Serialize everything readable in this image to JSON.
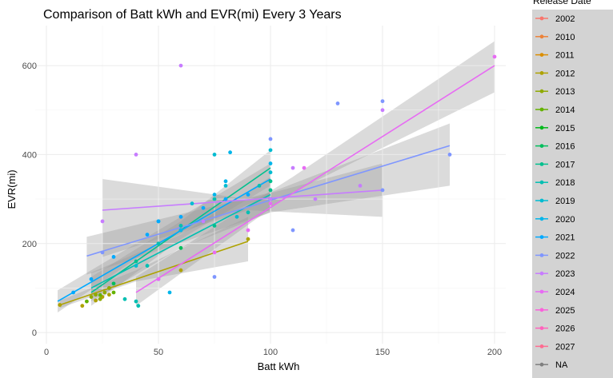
{
  "chart_data": {
    "type": "scatter",
    "title": "Comparison of Batt kWh and EVR(mi) Every 3 Years",
    "xlabel": "Batt kWh",
    "ylabel": "EVR(mi)",
    "xlim": [
      -5,
      205
    ],
    "ylim": [
      -25,
      690
    ],
    "x_ticks": [
      0,
      50,
      100,
      150,
      200
    ],
    "y_ticks": [
      0,
      200,
      400,
      600
    ],
    "grid": true,
    "legend_title": "Release Date",
    "legend_position": "right",
    "series": [
      {
        "name": "2002",
        "color": "#F8766D",
        "points": [],
        "fit": null
      },
      {
        "name": "2010",
        "color": "#EC8239",
        "points": [],
        "fit": null
      },
      {
        "name": "2011",
        "color": "#DB8E00",
        "points": [],
        "fit": null
      },
      {
        "name": "2012",
        "color": "#AEA200",
        "points": [
          [
            6,
            62
          ],
          [
            16,
            60
          ],
          [
            22,
            72
          ],
          [
            25,
            80
          ],
          [
            28,
            85
          ],
          [
            60,
            140
          ],
          [
            90,
            210
          ]
        ],
        "fit": {
          "x": [
            6,
            90
          ],
          "y": [
            62,
            205
          ],
          "band": [
            [
              6,
              55,
              72
            ],
            [
              40,
              115,
              140
            ],
            [
              90,
              160,
              260
            ]
          ]
        }
      },
      {
        "name": "2013",
        "color": "#8FAA00",
        "points": [
          [
            20,
            80
          ],
          [
            22,
            85
          ],
          [
            24,
            75
          ],
          [
            26,
            90
          ],
          [
            28,
            100
          ]
        ],
        "fit": null
      },
      {
        "name": "2014",
        "color": "#64B200",
        "points": [
          [
            18,
            70
          ],
          [
            24,
            84
          ],
          [
            30,
            90
          ]
        ],
        "fit": null
      },
      {
        "name": "2015",
        "color": "#00B81B",
        "points": [],
        "fit": null
      },
      {
        "name": "2016",
        "color": "#00BD5C",
        "points": [
          [
            30,
            110
          ],
          [
            60,
            190
          ]
        ],
        "fit": null
      },
      {
        "name": "2017",
        "color": "#00C08E",
        "points": [
          [
            40,
            160
          ],
          [
            60,
            230
          ],
          [
            75,
            240
          ],
          [
            100,
            340
          ],
          [
            100,
            320
          ]
        ],
        "fit": {
          "x": [
            20,
            100
          ],
          "y": [
            90,
            370
          ],
          "band": [
            [
              20,
              60,
              125
            ],
            [
              60,
              210,
              250
            ],
            [
              100,
              330,
              410
            ]
          ]
        }
      },
      {
        "name": "2018",
        "color": "#00BFB2",
        "points": [
          [
            35,
            75
          ],
          [
            40,
            70
          ],
          [
            41,
            60
          ],
          [
            45,
            150
          ],
          [
            50,
            200
          ],
          [
            60,
            240
          ],
          [
            75,
            300
          ],
          [
            90,
            270
          ],
          [
            95,
            330
          ],
          [
            100,
            300
          ]
        ],
        "fit": {
          "x": [
            20,
            100
          ],
          "y": [
            100,
            310
          ],
          "band": [
            [
              20,
              70,
              135
            ],
            [
              60,
              190,
              220
            ],
            [
              100,
              270,
              350
            ]
          ]
        }
      },
      {
        "name": "2019",
        "color": "#00BCD1",
        "points": [
          [
            40,
            150
          ],
          [
            50,
            250
          ],
          [
            65,
            290
          ],
          [
            75,
            400
          ],
          [
            80,
            330
          ],
          [
            85,
            260
          ],
          [
            100,
            360
          ],
          [
            100,
            410
          ]
        ],
        "fit": null
      },
      {
        "name": "2020",
        "color": "#00B5EA",
        "points": [
          [
            55,
            90
          ],
          [
            60,
            230
          ],
          [
            70,
            250
          ],
          [
            75,
            310
          ],
          [
            80,
            340
          ],
          [
            82,
            405
          ],
          [
            100,
            300
          ],
          [
            100,
            380
          ]
        ],
        "fit": null
      },
      {
        "name": "2021",
        "color": "#00A9FF",
        "points": [
          [
            12,
            90
          ],
          [
            20,
            120
          ],
          [
            30,
            170
          ],
          [
            45,
            220
          ],
          [
            50,
            250
          ],
          [
            60,
            260
          ],
          [
            70,
            280
          ],
          [
            80,
            300
          ],
          [
            90,
            310
          ]
        ],
        "fit": {
          "x": [
            5,
            100
          ],
          "y": [
            70,
            345
          ],
          "band": [
            [
              5,
              45,
              95
            ],
            [
              50,
              200,
              230
            ],
            [
              100,
              310,
              380
            ]
          ]
        }
      },
      {
        "name": "2022",
        "color": "#7F96FF",
        "points": [
          [
            25,
            180
          ],
          [
            50,
            120
          ],
          [
            75,
            125
          ],
          [
            100,
            435
          ],
          [
            110,
            230
          ],
          [
            130,
            515
          ],
          [
            150,
            320
          ],
          [
            150,
            520
          ],
          [
            180,
            400
          ]
        ],
        "fit": {
          "x": [
            18,
            180
          ],
          "y": [
            172,
            420
          ],
          "band": [
            [
              18,
              130,
              215
            ],
            [
              100,
              270,
              315
            ],
            [
              180,
              330,
              470
            ]
          ]
        }
      },
      {
        "name": "2023",
        "color": "#C77CFF",
        "points": [
          [
            25,
            250
          ],
          [
            40,
            400
          ],
          [
            60,
            600
          ],
          [
            70,
            250
          ],
          [
            100,
            300
          ],
          [
            110,
            370
          ],
          [
            120,
            300
          ],
          [
            140,
            330
          ],
          [
            150,
            500
          ]
        ],
        "fit": {
          "x": [
            25,
            150
          ],
          "y": [
            275,
            320
          ],
          "band": [
            [
              25,
              170,
              345
            ],
            [
              90,
              275,
              300
            ],
            [
              150,
              260,
              380
            ]
          ]
        }
      },
      {
        "name": "2024",
        "color": "#E76BF3",
        "points": [
          [
            50,
            120
          ],
          [
            75,
            180
          ],
          [
            90,
            230
          ],
          [
            100,
            290
          ],
          [
            115,
            370
          ],
          [
            200,
            620
          ]
        ],
        "fit": {
          "x": [
            40,
            200
          ],
          "y": [
            90,
            600
          ],
          "band": [
            [
              40,
              60,
              125
            ],
            [
              110,
              315,
              350
            ],
            [
              200,
              540,
              655
            ]
          ]
        }
      },
      {
        "name": "2025",
        "color": "#FA62DB",
        "points": [],
        "fit": null
      },
      {
        "name": "2026",
        "color": "#FF62BC",
        "points": [],
        "fit": null
      },
      {
        "name": "2027",
        "color": "#FF6C91",
        "points": [],
        "fit": null
      },
      {
        "name": "NA",
        "color": "#7F7F7F",
        "points": [],
        "fit": null
      }
    ]
  }
}
